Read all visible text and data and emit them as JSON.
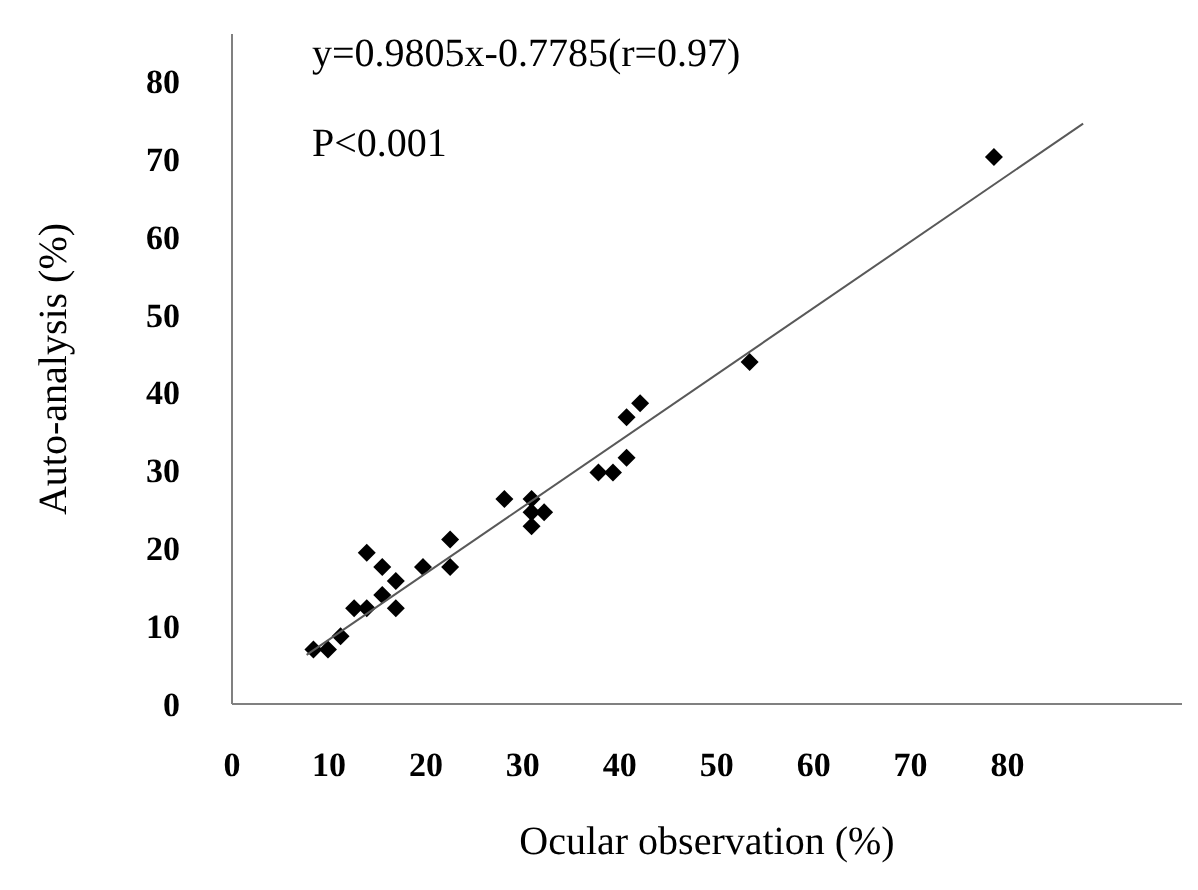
{
  "chart_data": {
    "type": "scatter",
    "xlabel": "Ocular observation (%)",
    "ylabel": "Auto-analysis (%)",
    "annotations": [
      "y=0.9805x-0.7785(r=0.97)",
      "P<0.001"
    ],
    "xlim": [
      0,
      98
    ],
    "xticks": [
      0,
      10,
      20,
      30,
      40,
      50,
      60,
      70,
      80
    ],
    "ylim": [
      0,
      86
    ],
    "yticks": [
      0,
      10,
      20,
      30,
      40,
      50,
      60,
      70,
      80
    ],
    "grid": false,
    "legend": false,
    "series": [
      {
        "marker": "diamond",
        "color": "#000000",
        "x": [
          8.4,
          9.9,
          11.2,
          12.6,
          13.9,
          13.9,
          15.5,
          15.5,
          16.9,
          16.9,
          19.7,
          22.5,
          22.5,
          28.1,
          30.9,
          30.9,
          30.9,
          32.2,
          37.8,
          39.3,
          40.7,
          40.7,
          42.1,
          53.4,
          78.6
        ],
        "values": [
          7.0,
          7.0,
          8.7,
          12.3,
          12.3,
          19.4,
          17.6,
          14.0,
          15.8,
          12.3,
          17.6,
          21.1,
          17.6,
          26.3,
          26.3,
          24.6,
          22.8,
          24.6,
          29.7,
          29.7,
          31.6,
          36.8,
          38.6,
          43.9,
          70.2
        ]
      },
      {
        "type": "line",
        "color": "#595959",
        "x": [
          7.7,
          87.8
        ],
        "values": [
          6.3,
          74.5
        ]
      }
    ]
  }
}
